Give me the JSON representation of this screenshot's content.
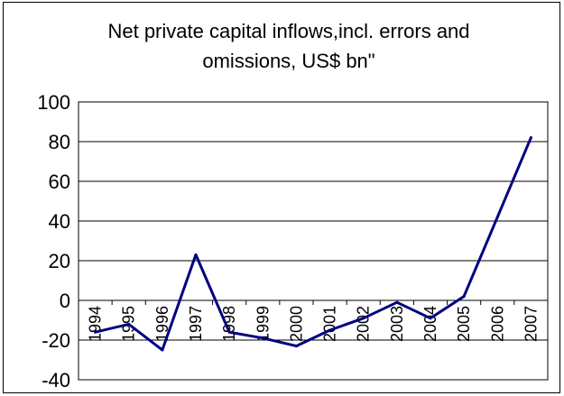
{
  "chart_data": {
    "type": "line",
    "title_lines": [
      "Net private capital inflows,incl. errors and",
      "omissions, US$ bn\""
    ],
    "categories": [
      "1994",
      "1995",
      "1996",
      "1997",
      "1998",
      "1999",
      "2000",
      "2001",
      "2002",
      "2003",
      "2004",
      "2005",
      "2006",
      "2007"
    ],
    "values": [
      -16,
      -12,
      -25,
      23,
      -16,
      -19,
      -23,
      -15,
      -9,
      -1,
      -9,
      2,
      42,
      82
    ],
    "ylim": [
      -40,
      100
    ],
    "yticks": [
      "100",
      "80",
      "60",
      "40",
      "20",
      "0",
      "-20",
      "-40"
    ],
    "grid": true,
    "legend": "none",
    "line_color": "#000080"
  }
}
